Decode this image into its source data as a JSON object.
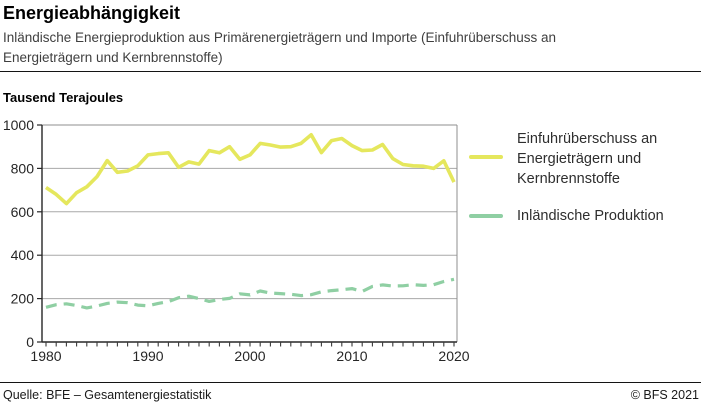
{
  "header": {
    "title": "Energieabhängigkeit",
    "subtitle": "Inländische Energieproduktion aus Primärenergieträgern und Importe (Einfuhrüberschuss an Energieträgern und Kernbrennstoffe)"
  },
  "axis_title": "Tausend Terajoules",
  "legend": {
    "items": [
      {
        "label": "Einfuhrüberschuss an Energieträgern und Kernbrennstoffe"
      },
      {
        "label": "Inländische Produktion"
      }
    ]
  },
  "footer": {
    "source": "Quelle: BFE – Gesamtenergiestatistik",
    "copyright": "© BFS 2021"
  },
  "colors": {
    "grid": "#a8a8a8",
    "frame": "#8f8f8f",
    "axis": "#262626",
    "tick": "#3a3a3a",
    "tick_label": "#262626"
  },
  "chart_data": {
    "type": "line",
    "title": "Energieabhängigkeit",
    "xlabel": "",
    "ylabel": "Tausend Terajoules",
    "ylim": [
      0,
      1000
    ],
    "yticks": [
      0,
      200,
      400,
      600,
      800,
      1000
    ],
    "xticks_labeled": [
      1980,
      1990,
      2000,
      2010,
      2020
    ],
    "grid": "horizontal",
    "legend_position": "right",
    "x": [
      1980,
      1981,
      1982,
      1983,
      1984,
      1985,
      1986,
      1987,
      1988,
      1989,
      1990,
      1991,
      1992,
      1993,
      1994,
      1995,
      1996,
      1997,
      1998,
      1999,
      2000,
      2001,
      2002,
      2003,
      2004,
      2005,
      2006,
      2007,
      2008,
      2009,
      2010,
      2011,
      2012,
      2013,
      2014,
      2015,
      2016,
      2017,
      2018,
      2019,
      2020
    ],
    "series": [
      {
        "name": "Einfuhrüberschuss an Energieträgern und Kernbrennstoffe",
        "color": "#e5e75d",
        "style": "solid",
        "values": [
          712,
          680,
          638,
          688,
          715,
          762,
          836,
          782,
          788,
          812,
          862,
          868,
          872,
          805,
          830,
          820,
          882,
          872,
          900,
          842,
          862,
          915,
          908,
          898,
          900,
          915,
          955,
          873,
          928,
          938,
          905,
          882,
          885,
          910,
          845,
          818,
          812,
          810,
          800,
          835,
          737
        ]
      },
      {
        "name": "Inländische Produktion",
        "color": "#8fcfa3",
        "style": "dashed",
        "values": [
          160,
          172,
          176,
          168,
          157,
          166,
          178,
          184,
          181,
          170,
          167,
          178,
          186,
          204,
          211,
          200,
          187,
          196,
          201,
          222,
          217,
          235,
          226,
          223,
          220,
          214,
          218,
          231,
          237,
          241,
          246,
          233,
          256,
          263,
          258,
          259,
          264,
          261,
          264,
          279,
          289
        ]
      }
    ]
  }
}
